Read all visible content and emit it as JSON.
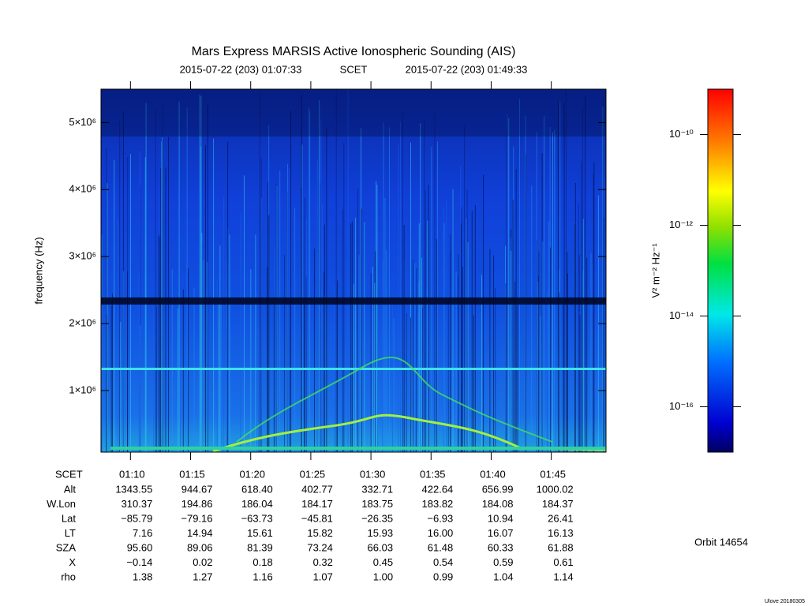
{
  "chart_data": {
    "type": "spectrogram",
    "title": "Mars Express MARSIS Active Ionospheric Sounding (AIS)",
    "subtitle_start": "2015-07-22 (203) 01:07:33",
    "subtitle_mid": "SCET",
    "subtitle_end": "2015-07-22 (203) 01:49:33",
    "y_label": "frequency (Hz)",
    "xlim": [
      4053,
      6573
    ],
    "xticks": [
      {
        "value": 4200,
        "label": "01:10"
      },
      {
        "value": 4500,
        "label": "01:15"
      },
      {
        "value": 4800,
        "label": "01:20"
      },
      {
        "value": 5100,
        "label": "01:25"
      },
      {
        "value": 5400,
        "label": "01:30"
      },
      {
        "value": 5700,
        "label": "01:35"
      },
      {
        "value": 6000,
        "label": "01:40"
      },
      {
        "value": 6300,
        "label": "01:45"
      }
    ],
    "ylim": [
      80000,
      5500000
    ],
    "yticks": [
      {
        "value": 1000000,
        "label": "1×10⁶"
      },
      {
        "value": 2000000,
        "label": "2×10⁶"
      },
      {
        "value": 3000000,
        "label": "3×10⁶"
      },
      {
        "value": 4000000,
        "label": "4×10⁶"
      },
      {
        "value": 5000000,
        "label": "5×10⁶"
      }
    ],
    "colorbar": {
      "label": "V² m⁻² Hz⁻¹",
      "log_scale": true,
      "clim": [
        1e-17,
        1e-09
      ],
      "ticks": [
        {
          "value": 1e-16,
          "label": "10⁻¹⁶"
        },
        {
          "value": 1e-14,
          "label": "10⁻¹⁴"
        },
        {
          "value": 1e-12,
          "label": "10⁻¹²"
        },
        {
          "value": 1e-10,
          "label": "10⁻¹⁰"
        }
      ]
    },
    "ephemeris": {
      "time_label": "SCET",
      "rows": [
        {
          "label": "Alt",
          "values": [
            "1343.55",
            "944.67",
            "618.40",
            "402.77",
            "332.71",
            "422.64",
            "656.99",
            "1000.02"
          ]
        },
        {
          "label": "W.Lon",
          "values": [
            "310.37",
            "194.86",
            "186.04",
            "184.17",
            "183.75",
            "183.82",
            "184.08",
            "184.37"
          ]
        },
        {
          "label": "Lat",
          "values": [
            "−85.79",
            "−79.16",
            "−63.73",
            "−45.81",
            "−26.35",
            "−6.93",
            "10.94",
            "26.41"
          ]
        },
        {
          "label": "LT",
          "values": [
            "7.16",
            "14.94",
            "15.61",
            "15.82",
            "15.93",
            "16.00",
            "16.07",
            "16.13"
          ]
        },
        {
          "label": "SZA",
          "values": [
            "95.60",
            "89.06",
            "81.39",
            "73.24",
            "66.03",
            "61.48",
            "60.33",
            "61.88"
          ]
        },
        {
          "label": "X",
          "values": [
            "−0.14",
            "0.02",
            "0.18",
            "0.32",
            "0.45",
            "0.54",
            "0.59",
            "0.61"
          ]
        },
        {
          "label": "rho",
          "values": [
            "1.38",
            "1.27",
            "1.16",
            "1.07",
            "1.00",
            "0.99",
            "1.04",
            "1.14"
          ]
        }
      ]
    },
    "orbit": "Orbit 14654",
    "footer": "Ulove 20180305"
  }
}
